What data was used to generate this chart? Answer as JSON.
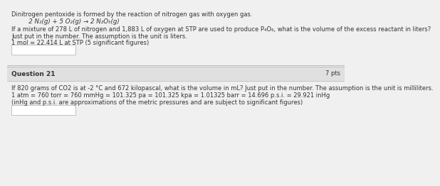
{
  "bg_color": "#f0f0f0",
  "white": "#ffffff",
  "line_color": "#bbbbbb",
  "header_bg": "#e0e0e0",
  "text_color": "#333333",
  "top_label": "Dinitrogen pentoxide is formed by the reaction of nitrogen gas with oxygen gas.",
  "equation": "   2 N₂(g) + 5 O₂(g) → 2 N₂O₅(g)",
  "question_body1a": "If a mixture of 278 L of nitrogen and 1,883 L of oxygen at STP are used to produce P₄O₆, what is the volume of the excess reactant in liters?",
  "question_body1b": "Just put in the number. The assumption is the unit is liters.",
  "question_body2": "1 mol = 22.414 L at STP (5 significant figures)",
  "q21_header": "Question 21",
  "q21_pts": "7 pts",
  "q21_line1": "If 820 grams of CO2 is at -2 °C and 672 kilopascal, what is the volume in mL? Just put in the number. The assumption is the unit is milliliters.",
  "q21_line2": "1 atm = 760 torr = 760 mmHg = 101.325 pa = 101.325 kpa = 1.01325 barr = 14.696 p.s.i. = 29.921 inHg",
  "q21_line3": "(inHg and p.s.i. are approximations of the metric pressures and are subject to significant figures)",
  "fs_main": 6.0,
  "fs_eq": 6.2,
  "fs_header": 6.5
}
